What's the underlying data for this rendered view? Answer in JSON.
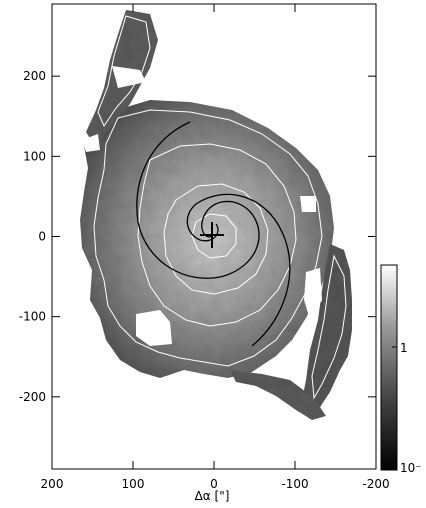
{
  "figure": {
    "x_axis": {
      "title": "Δα [\"]",
      "ticks": [
        200,
        100,
        0,
        -100,
        -200
      ],
      "range": [
        200,
        -200
      ]
    },
    "y_axis": {
      "ticks": [
        200,
        100,
        0,
        -100,
        -200
      ],
      "range": [
        -290,
        290
      ]
    },
    "colorbar": {
      "labels": [
        "1",
        "10⁻"
      ],
      "scale": "log"
    },
    "colors": {
      "background": "#ffffff",
      "contour": "#ffffff",
      "spiral": "#000000",
      "frame": "#000000"
    }
  }
}
